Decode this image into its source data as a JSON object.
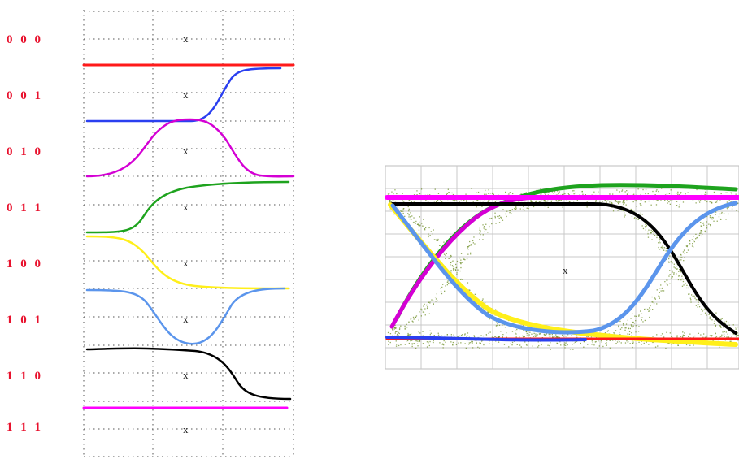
{
  "left_panel": {
    "patterns": [
      {
        "code": "0 0 0",
        "center_mark": "x",
        "color": "#ff1a1a",
        "shape": "flat-high"
      },
      {
        "code": "0 0 1",
        "center_mark": "x",
        "color": "#2a3ff0",
        "shape": "rise-late"
      },
      {
        "code": "0 1 0",
        "center_mark": "x",
        "color": "#d400d4",
        "shape": "bump-up"
      },
      {
        "code": "0 1 1",
        "center_mark": "x",
        "color": "#1ea31e",
        "shape": "rise-early"
      },
      {
        "code": "1 0 0",
        "center_mark": "x",
        "color": "#ffef1a",
        "shape": "fall-early"
      },
      {
        "code": "1 0 1",
        "center_mark": "x",
        "color": "#5b95ec",
        "shape": "bump-down"
      },
      {
        "code": "1 1 0",
        "center_mark": "x",
        "color": "#000000",
        "shape": "fall-late"
      },
      {
        "code": "1 1 1",
        "center_mark": "x",
        "color": "#ff00ff",
        "shape": "flat-low"
      }
    ]
  },
  "eye_diagram": {
    "center_mark": "x",
    "noise_color": "#6f8f2a",
    "grid_color": "#c8c8c8"
  }
}
